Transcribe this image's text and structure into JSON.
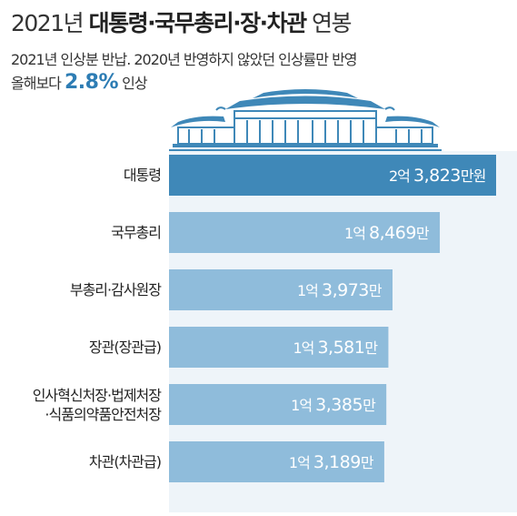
{
  "header": {
    "title_year": "2021년",
    "title_main": "대통령·국무총리·장·차관",
    "title_suffix": "연봉",
    "subtitle_line1": "2021년 인상분 반납. 2020년 반영하지 않았던 인상률만 반영",
    "subtitle_line2_prefix": "올해보다",
    "subtitle_line2_value": "2.8%",
    "subtitle_line2_suffix": "인상"
  },
  "colors": {
    "top_bar": "#3f88b8",
    "bar": "#8fbcdb",
    "accent_text": "#2e7db4",
    "building": "#3f88b8"
  },
  "chart_data": {
    "type": "bar",
    "orientation": "horizontal",
    "unit": "만원",
    "categories": [
      "대통령",
      "국무총리",
      "부총리·감사원장",
      "장관(장관급)",
      "인사혁신처장·법제처장 ·식품의약품안전처장",
      "차관(차관급)"
    ],
    "category_lines": [
      [
        "대통령"
      ],
      [
        "국무총리"
      ],
      [
        "부총리·감사원장"
      ],
      [
        "장관(장관급)"
      ],
      [
        "인사혁신처장·법제처장",
        "·식품의약품안전처장"
      ],
      [
        "차관(차관급)"
      ]
    ],
    "values": [
      23823,
      18469,
      13973,
      13581,
      13385,
      13189
    ],
    "value_labels": [
      {
        "pre": "2억",
        "num": "3,823",
        "unit": "만원"
      },
      {
        "pre": "1억",
        "num": "8,469",
        "unit": "만"
      },
      {
        "pre": "1억",
        "num": "3,973",
        "unit": "만"
      },
      {
        "pre": "1억",
        "num": "3,581",
        "unit": "만"
      },
      {
        "pre": "1억",
        "num": "3,385",
        "unit": "만"
      },
      {
        "pre": "1억",
        "num": "3,189",
        "unit": "만"
      }
    ]
  }
}
